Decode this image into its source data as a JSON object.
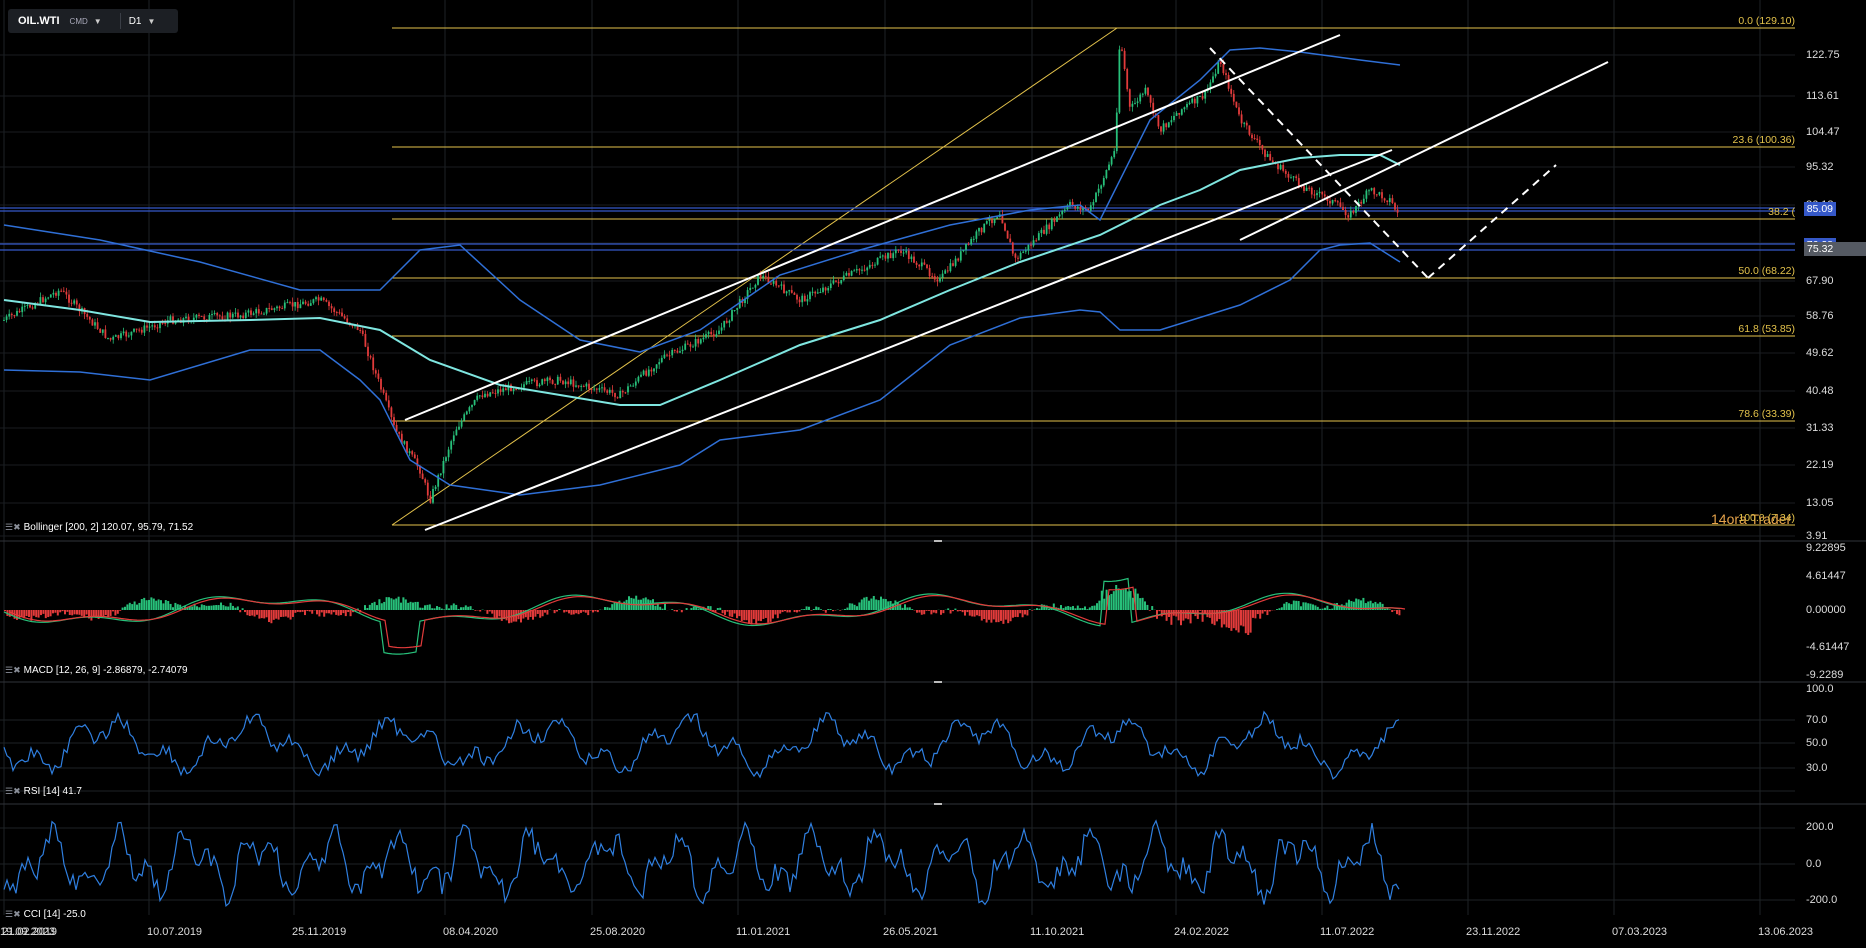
{
  "toolbar": {
    "symbol": "OIL.WTI",
    "market": "CMD",
    "timeframe": "D1"
  },
  "main_price_axis": [
    "122.75",
    "113.61",
    "104.47",
    "95.32",
    "86.18",
    "77.04",
    "67.90",
    "58.76",
    "49.62",
    "40.48",
    "31.33",
    "22.19",
    "13.05",
    "3.91"
  ],
  "price_tags": {
    "blue_top": "85.09",
    "blue_mid": "76.28",
    "current": "75.32"
  },
  "fib_levels": [
    {
      "label": "0.0 (129.10)",
      "color": "#e3c24b"
    },
    {
      "label": "23.6 (100.36)",
      "color": "#e3c24b"
    },
    {
      "label": "38.2 (",
      "color": "#e3c24b"
    },
    {
      "label": "50.0 (68.22)",
      "color": "#e3c24b"
    },
    {
      "label": "61.8 (53.85)",
      "color": "#e3c24b"
    },
    {
      "label": "78.6 (33.39)",
      "color": "#e3c24b"
    },
    {
      "label": "100.0 (7.34)",
      "color": "#e3c24b"
    }
  ],
  "watermark": "14ora Trader",
  "panels": {
    "bollinger": "Bollinger [200, 2] 120.07, 95.79, 71.52",
    "macd": "MACD [12, 26, 9] -2.86879, -2.74079",
    "rsi": "RSI [14] 41.7",
    "cci": "CCI [14] -25.0"
  },
  "macd_axis": [
    "9.22895",
    "4.61447",
    "0.00000",
    "-4.61447",
    "-9.2289"
  ],
  "rsi_axis": [
    "100.0",
    "70.0",
    "50.0",
    "30.0"
  ],
  "cci_axis": [
    "200.0",
    "0.0",
    "-200.0"
  ],
  "x_axis": [
    "21.02.2019",
    "10.07.2019",
    "25.11.2019",
    "08.04.2020",
    "25.08.2020",
    "11.01.2021",
    "26.05.2021",
    "11.10.2021",
    "24.02.2022",
    "11.07.2022",
    "23.11.2022",
    "07.03.2023",
    "13.06.2023",
    "19.09.2023"
  ],
  "colors": {
    "fib": "#e3c24b",
    "bollinger": "#2f6fd6",
    "ma": "#7fe6e0",
    "bull": "#27c07a",
    "bear": "#e23b3b",
    "macd_line": "#27c07a",
    "signal_line": "#e23b3b",
    "osc": "#2f7fe0",
    "tag_blue": "#3558c8",
    "tag_gray": "#555a63"
  }
}
